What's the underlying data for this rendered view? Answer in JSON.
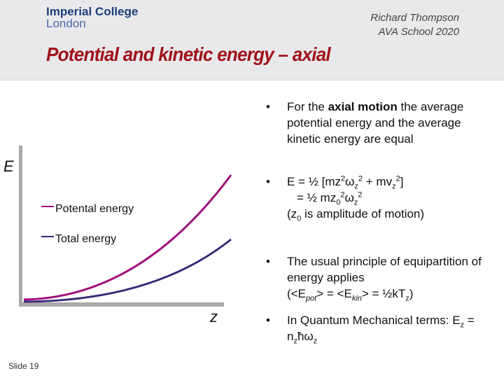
{
  "header": {
    "logo_line1": "Imperial College",
    "logo_line2": "London",
    "author": "Richard Thompson",
    "event": "AVA School 2020",
    "title": "Potential and kinetic energy – axial"
  },
  "chart": {
    "y_label": "E",
    "x_label": "z",
    "legend_potential": "Potental energy",
    "legend_total": "Total energy",
    "colors": {
      "potential": "#a0107a",
      "total": "#3c2a7a",
      "axes": "#a9a9a9"
    }
  },
  "bullets": {
    "b1_pre": "For the ",
    "b1_bold": "axial motion",
    "b1_post": " the average potential energy and the average kinetic energy are equal",
    "b2_line1": "E = ½ [mz²ω_z² + mv_z²]",
    "b2_line2": "= ½ mz₀²ω_z²",
    "b2_line3": "(z₀ is amplitude of motion)",
    "b3_line1": "The usual principle of equipartition of energy applies",
    "b3_line2": "(<E_pot> = <E_kin> = ½kT_z)",
    "b4": "In Quantum Mechanical terms: E_z = n_zħω_z"
  },
  "footer": {
    "slide": "Slide 19"
  }
}
